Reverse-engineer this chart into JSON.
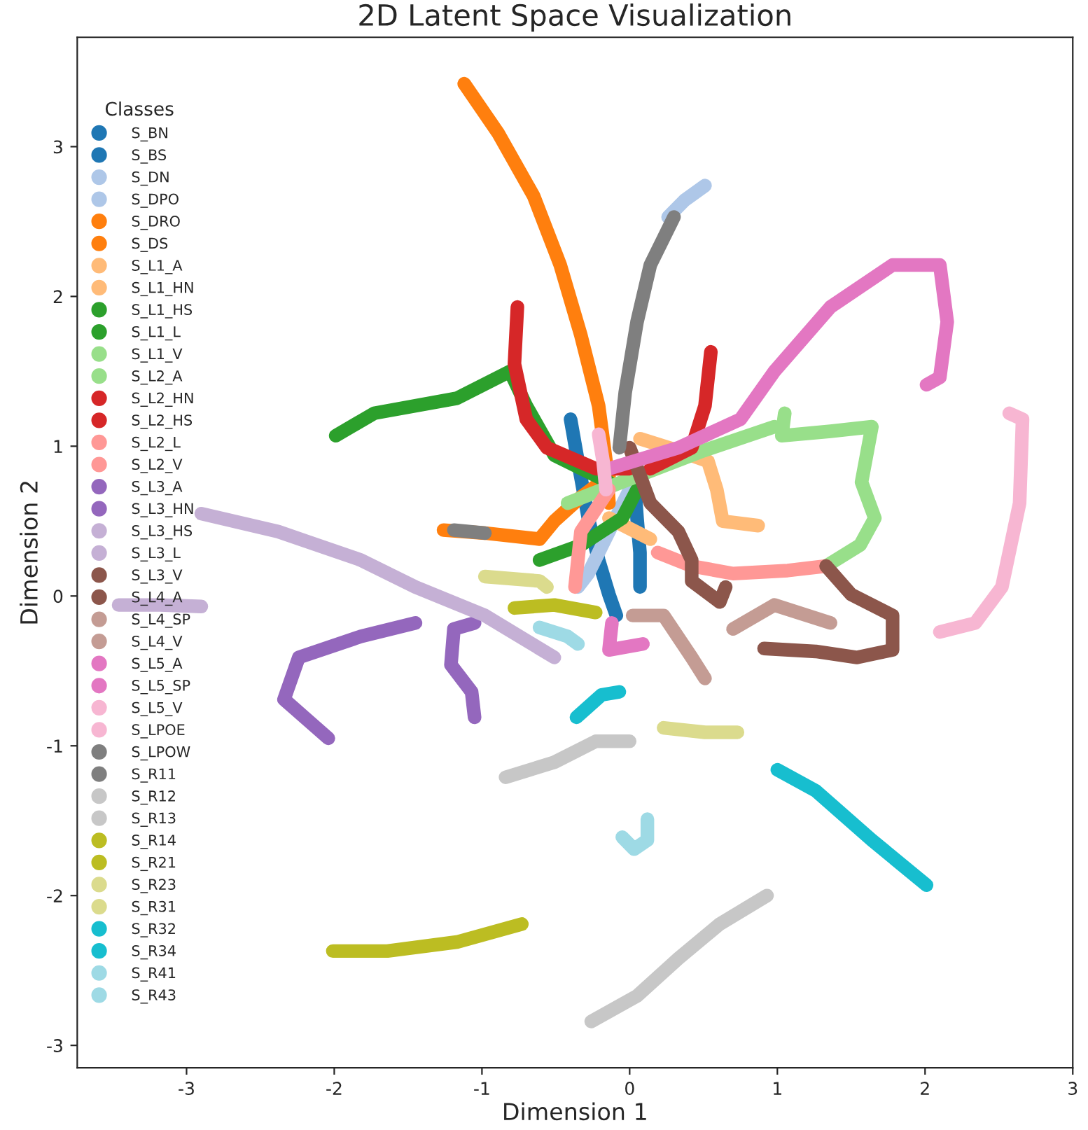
{
  "chart_data": {
    "type": "line",
    "title": "2D Latent Space Visualization",
    "xlabel": "Dimension 1",
    "ylabel": "Dimension 2",
    "legend_title": "Classes",
    "legend": "left",
    "grid": false,
    "marker": "none",
    "line_style": "solid",
    "xlim": [
      -3.74,
      3.0
    ],
    "ylim": [
      -3.15,
      3.73
    ],
    "xticks": [
      -3,
      -2,
      -1,
      0,
      1,
      2,
      3
    ],
    "yticks": [
      -3,
      -2,
      -1,
      0,
      1,
      2,
      3
    ],
    "series": [
      {
        "name": "S_BN",
        "color": "#1f77b4",
        "x": [
          -0.4,
          -0.35,
          -0.28,
          -0.21,
          -0.14,
          -0.09
        ],
        "values": [
          1.18,
          0.9,
          0.52,
          0.24,
          0.01,
          -0.13
        ]
      },
      {
        "name": "S_BS",
        "color": "#1f77b4",
        "x": [
          0.03,
          0.05,
          0.07,
          0.07
        ],
        "values": [
          0.8,
          0.52,
          0.29,
          0.06
        ]
      },
      {
        "name": "S_DN",
        "color": "#aec7e8",
        "x": [
          0.0,
          -0.14,
          -0.28,
          -0.35
        ],
        "values": [
          0.71,
          0.43,
          0.15,
          0.06
        ]
      },
      {
        "name": "S_DPO",
        "color": "#aec7e8",
        "x": [
          0.26,
          0.37,
          0.51
        ],
        "values": [
          2.53,
          2.64,
          2.74
        ]
      },
      {
        "name": "S_DRO",
        "color": "#ff7f0e",
        "x": [
          -1.12,
          -0.89,
          -0.65,
          -0.47,
          -0.33,
          -0.21,
          -0.16,
          -0.14
        ],
        "values": [
          3.42,
          3.09,
          2.67,
          2.21,
          1.74,
          1.27,
          0.9,
          0.62
        ]
      },
      {
        "name": "S_DS",
        "color": "#ff7f0e",
        "x": [
          -1.26,
          -0.98,
          -0.61,
          -0.51,
          -0.33,
          -0.14
        ],
        "values": [
          0.44,
          0.42,
          0.38,
          0.5,
          0.66,
          0.8
        ]
      },
      {
        "name": "S_L1_A",
        "color": "#ffbb78",
        "x": [
          -0.14,
          0.0,
          0.14
        ],
        "values": [
          0.52,
          0.45,
          0.38
        ]
      },
      {
        "name": "S_L1_HN",
        "color": "#ffbb78",
        "x": [
          0.07,
          0.33,
          0.53,
          0.59,
          0.63,
          0.87
        ],
        "values": [
          1.05,
          0.97,
          0.9,
          0.71,
          0.5,
          0.47
        ]
      },
      {
        "name": "S_L1_HS",
        "color": "#2ca02c",
        "x": [
          -1.99,
          -1.73,
          -1.17,
          -0.81,
          -0.7,
          -0.51,
          -0.14
        ],
        "values": [
          1.07,
          1.22,
          1.32,
          1.5,
          1.27,
          0.94,
          0.76
        ]
      },
      {
        "name": "S_L1_L",
        "color": "#2ca02c",
        "x": [
          -0.61,
          -0.33,
          -0.05,
          0.05
        ],
        "values": [
          0.24,
          0.34,
          0.52,
          0.71
        ]
      },
      {
        "name": "S_L1_V",
        "color": "#98df8a",
        "x": [
          -0.42,
          0.05,
          0.5,
          0.98
        ],
        "values": [
          0.62,
          0.8,
          0.97,
          1.13
        ]
      },
      {
        "name": "S_L2_A",
        "color": "#98df8a",
        "x": [
          1.05,
          1.03,
          1.36,
          1.64,
          1.57,
          1.66,
          1.56,
          1.33
        ],
        "values": [
          1.22,
          1.07,
          1.1,
          1.13,
          0.76,
          0.52,
          0.34,
          0.2
        ]
      },
      {
        "name": "S_L2_HN",
        "color": "#d62728",
        "x": [
          -0.76,
          -0.78,
          -0.7,
          -0.56,
          -0.23,
          0.0
        ],
        "values": [
          1.93,
          1.55,
          1.18,
          0.99,
          0.85,
          0.85
        ]
      },
      {
        "name": "S_L2_HS",
        "color": "#d62728",
        "x": [
          0.55,
          0.51,
          0.42,
          0.14
        ],
        "values": [
          1.63,
          1.27,
          0.99,
          0.85
        ]
      },
      {
        "name": "S_L2_L",
        "color": "#ff9896",
        "x": [
          -0.37,
          -0.33,
          -0.14
        ],
        "values": [
          0.06,
          0.43,
          0.71
        ]
      },
      {
        "name": "S_L2_V",
        "color": "#ff9896",
        "x": [
          0.19,
          0.42,
          0.7,
          1.07,
          1.33
        ],
        "values": [
          0.29,
          0.2,
          0.15,
          0.17,
          0.2
        ]
      },
      {
        "name": "S_L3_A",
        "color": "#9467bd",
        "x": [
          -2.04,
          -2.34,
          -2.24,
          -1.82,
          -1.45
        ],
        "values": [
          -0.95,
          -0.69,
          -0.41,
          -0.27,
          -0.18
        ]
      },
      {
        "name": "S_L3_HN",
        "color": "#9467bd",
        "x": [
          -1.05,
          -1.07,
          -1.21,
          -1.19,
          -1.05
        ],
        "values": [
          -0.81,
          -0.64,
          -0.46,
          -0.22,
          -0.18
        ]
      },
      {
        "name": "S_L3_HS",
        "color": "#c5b0d5",
        "x": [
          -2.9,
          -2.38,
          -1.82,
          -1.45,
          -0.98,
          -0.51
        ],
        "values": [
          0.55,
          0.43,
          0.24,
          0.06,
          -0.13,
          -0.41
        ]
      },
      {
        "name": "S_L3_L",
        "color": "#c5b0d5",
        "x": [
          -3.46,
          -3.18,
          -2.9
        ],
        "values": [
          -0.06,
          -0.06,
          -0.07
        ]
      },
      {
        "name": "S_L3_V",
        "color": "#8c564b",
        "x": [
          0.0,
          0.14,
          0.33,
          0.42,
          0.42,
          0.61,
          0.65
        ],
        "values": [
          0.99,
          0.62,
          0.43,
          0.24,
          0.1,
          -0.04,
          0.06
        ]
      },
      {
        "name": "S_L4_A",
        "color": "#8c564b",
        "x": [
          1.33,
          1.5,
          1.78,
          1.78,
          1.54,
          1.26,
          0.91
        ],
        "values": [
          0.2,
          0.01,
          -0.13,
          -0.36,
          -0.41,
          -0.37,
          -0.35
        ]
      },
      {
        "name": "S_L4_SP",
        "color": "#c49c94",
        "x": [
          0.02,
          0.23,
          0.42,
          0.51
        ],
        "values": [
          -0.13,
          -0.13,
          -0.41,
          -0.55
        ]
      },
      {
        "name": "S_L4_V",
        "color": "#c49c94",
        "x": [
          0.7,
          0.98,
          1.36
        ],
        "values": [
          -0.22,
          -0.06,
          -0.18
        ]
      },
      {
        "name": "S_L5_A",
        "color": "#e377c2",
        "x": [
          -0.12,
          -0.14,
          0.09
        ],
        "values": [
          -0.18,
          -0.36,
          -0.32
        ]
      },
      {
        "name": "S_L5_SP",
        "color": "#e377c2",
        "x": [
          -0.14,
          0.33,
          0.75,
          0.98,
          1.36,
          1.78,
          2.1,
          2.15,
          2.1,
          2.01
        ],
        "values": [
          0.85,
          0.99,
          1.18,
          1.5,
          1.93,
          2.21,
          2.21,
          1.83,
          1.46,
          1.41
        ]
      },
      {
        "name": "S_L5_V",
        "color": "#f7b6d2",
        "x": [
          2.1,
          2.34,
          2.52,
          2.64,
          2.66,
          2.57
        ],
        "values": [
          -0.24,
          -0.18,
          0.06,
          0.62,
          1.18,
          1.22
        ]
      },
      {
        "name": "S_LPOE",
        "color": "#f7b6d2",
        "x": [
          -0.21,
          -0.18,
          -0.16
        ],
        "values": [
          1.08,
          0.9,
          0.71
        ]
      },
      {
        "name": "S_LPOW",
        "color": "#7f7f7f",
        "x": [
          0.3,
          0.14,
          0.05,
          -0.03,
          -0.07
        ],
        "values": [
          2.53,
          2.21,
          1.83,
          1.36,
          0.99
        ]
      },
      {
        "name": "S_R11",
        "color": "#7f7f7f",
        "x": [
          -1.19,
          -0.98
        ],
        "values": [
          0.44,
          0.42
        ]
      },
      {
        "name": "S_R12",
        "color": "#c7c7c7",
        "x": [
          -0.84,
          -0.51,
          -0.23,
          0.0
        ],
        "values": [
          -1.21,
          -1.11,
          -0.97,
          -0.97
        ]
      },
      {
        "name": "S_R13",
        "color": "#c7c7c7",
        "x": [
          -0.26,
          0.05,
          0.33,
          0.61,
          0.93
        ],
        "values": [
          -2.84,
          -2.67,
          -2.42,
          -2.19,
          -2.0
        ]
      },
      {
        "name": "S_R14",
        "color": "#bcbd22",
        "x": [
          -2.01,
          -1.64,
          -1.17,
          -0.73
        ],
        "values": [
          -2.37,
          -2.37,
          -2.31,
          -2.19
        ]
      },
      {
        "name": "S_R21",
        "color": "#bcbd22",
        "x": [
          -0.78,
          -0.51,
          -0.23
        ],
        "values": [
          -0.08,
          -0.06,
          -0.11
        ]
      },
      {
        "name": "S_R23",
        "color": "#dbdb8d",
        "x": [
          -0.98,
          -0.61,
          -0.56
        ],
        "values": [
          0.13,
          0.1,
          0.06
        ]
      },
      {
        "name": "S_R31",
        "color": "#dbdb8d",
        "x": [
          0.23,
          0.51,
          0.73
        ],
        "values": [
          -0.88,
          -0.91,
          -0.91
        ]
      },
      {
        "name": "S_R32",
        "color": "#17becf",
        "x": [
          -0.36,
          -0.19,
          -0.07
        ],
        "values": [
          -0.81,
          -0.66,
          -0.64
        ]
      },
      {
        "name": "S_R34",
        "color": "#17becf",
        "x": [
          1.0,
          1.26,
          1.64,
          2.01
        ],
        "values": [
          -1.16,
          -1.3,
          -1.63,
          -1.93
        ]
      },
      {
        "name": "S_R41",
        "color": "#9edae5",
        "x": [
          -0.61,
          -0.42,
          -0.35
        ],
        "values": [
          -0.21,
          -0.27,
          -0.32
        ]
      },
      {
        "name": "S_R43",
        "color": "#9edae5",
        "x": [
          0.12,
          0.12,
          0.03,
          -0.05
        ],
        "values": [
          -1.49,
          -1.63,
          -1.69,
          -1.61
        ]
      }
    ]
  }
}
